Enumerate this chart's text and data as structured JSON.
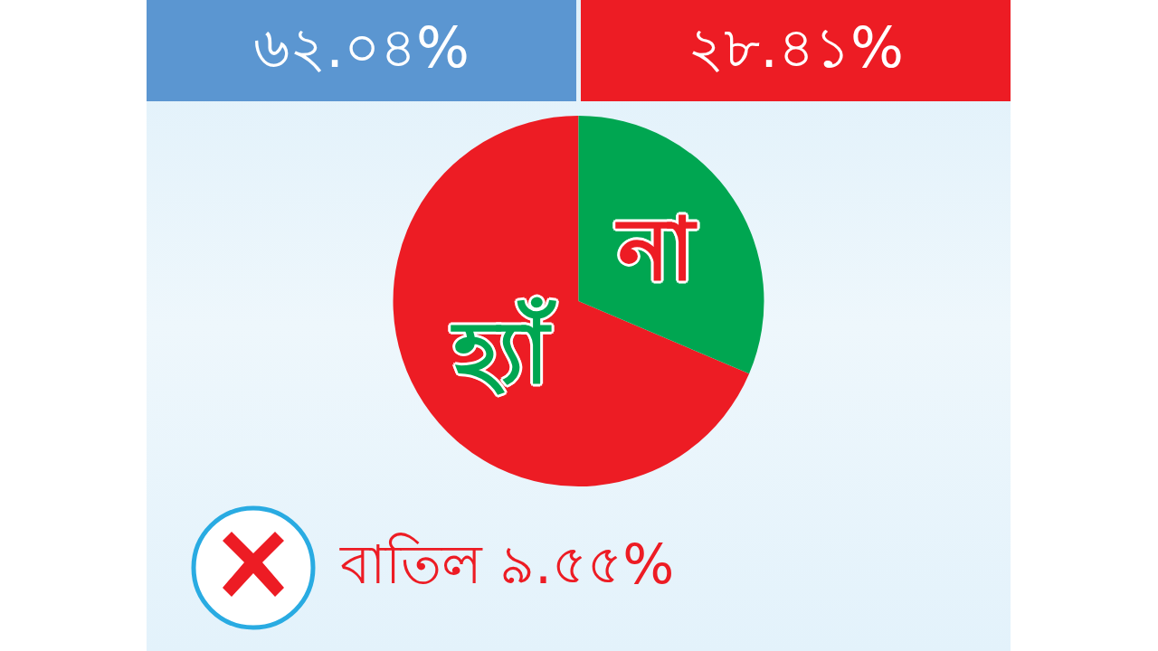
{
  "chart_data": {
    "type": "pie",
    "categories": [
      "হ্যাঁ",
      "না"
    ],
    "values": [
      62.04,
      28.41
    ],
    "colors": [
      "#ed1c24",
      "#00a651"
    ],
    "value_labels": [
      "৬২.০৪%",
      "২৮.৪১%"
    ],
    "annotations": [
      "বাতিল ৯.৫৫%"
    ]
  }
}
